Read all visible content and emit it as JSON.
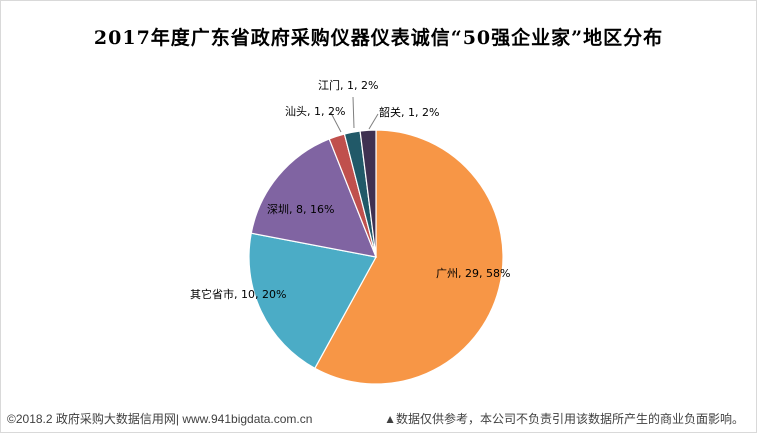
{
  "chart_data": {
    "type": "pie",
    "title": "2017年度广东省政府采购仪器仪表诚信“50强企业家”地区分布",
    "slices": [
      {
        "name": "广州",
        "value": 29,
        "percent": "58%",
        "color": "#f79646",
        "label": "广州, 29, 58%"
      },
      {
        "name": "其它省市",
        "value": 10,
        "percent": "20%",
        "color": "#4bacc6",
        "label": "其它省市, 10, 20%"
      },
      {
        "name": "深圳",
        "value": 8,
        "percent": "16%",
        "color": "#8064a2",
        "label": "深圳, 8, 16%"
      },
      {
        "name": "汕头",
        "value": 1,
        "percent": "2%",
        "color": "#c0504d",
        "label": "汕头, 1, 2%"
      },
      {
        "name": "江门",
        "value": 1,
        "percent": "2%",
        "color": "#215968",
        "label": "江门, 1, 2%"
      },
      {
        "name": "韶关",
        "value": 1,
        "percent": "2%",
        "color": "#3f3151",
        "label": "韶关, 1, 2%"
      }
    ]
  },
  "footer": {
    "left": "©2018.2 政府采购大数据信用网| www.941bigdata.com.cn",
    "right": "▲数据仅供参考，本公司不负责引用该数据所产生的商业负面影响。"
  }
}
